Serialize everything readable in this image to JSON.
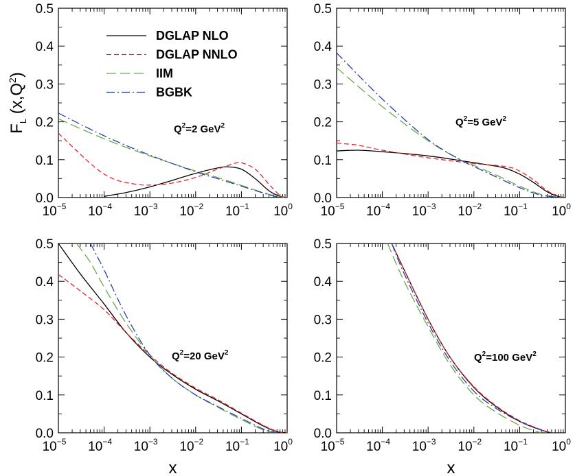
{
  "chart_data": {
    "type": "line",
    "ylabel": "F_L (x,Q^2)",
    "xlabel": "x",
    "x_scale": "log",
    "xlim": [
      1e-05,
      1
    ],
    "ylim": [
      0,
      0.5
    ],
    "x_ticks": [
      {
        "base": "10",
        "exp": "−5"
      },
      {
        "base": "10",
        "exp": "−4"
      },
      {
        "base": "10",
        "exp": "−3"
      },
      {
        "base": "10",
        "exp": "−2"
      },
      {
        "base": "10",
        "exp": "−1"
      },
      {
        "base": "10",
        "exp": "0"
      }
    ],
    "y_ticks": [
      "0.0",
      "0.1",
      "0.2",
      "0.3",
      "0.4",
      "0.5"
    ],
    "legend": {
      "position": "top-left of first panel",
      "entries": [
        {
          "name": "DGLAP NLO",
          "color": "#000000",
          "dash": "solid"
        },
        {
          "name": "DGLAP NNLO",
          "color": "#e8252a",
          "dash": "dashed"
        },
        {
          "name": "IIM",
          "color": "#6aa84f",
          "dash": "long-dashed"
        },
        {
          "name": "BGBK",
          "color": "#2b3ea8",
          "dash": "dash-dot"
        }
      ]
    },
    "panels": [
      {
        "label_q": "Q",
        "label_sup": "2",
        "label_mid": "=2 GeV",
        "label_sup2": "2",
        "series": [
          {
            "name": "DGLAP NLO",
            "x": [
              0.0001,
              0.0003,
              0.001,
              0.003,
              0.01,
              0.03,
              0.05,
              0.1,
              0.2,
              0.4,
              0.7,
              1
            ],
            "y": [
              0.003,
              0.013,
              0.028,
              0.045,
              0.064,
              0.078,
              0.081,
              0.075,
              0.05,
              0.018,
              0.003,
              0.0
            ]
          },
          {
            "name": "DGLAP NNLO",
            "x": [
              1e-05,
              2e-05,
              5e-05,
              0.0001,
              0.0002,
              0.0005,
              0.001,
              0.003,
              0.01,
              0.03,
              0.07,
              0.1,
              0.2,
              0.4,
              0.7,
              1
            ],
            "y": [
              0.17,
              0.135,
              0.09,
              0.062,
              0.045,
              0.035,
              0.033,
              0.038,
              0.053,
              0.075,
              0.09,
              0.092,
              0.075,
              0.035,
              0.006,
              0.0
            ]
          },
          {
            "name": "IIM",
            "x": [
              1e-05,
              0.0001,
              0.001,
              0.01,
              0.03,
              0.1,
              0.3,
              0.6,
              1
            ],
            "y": [
              0.208,
              0.155,
              0.11,
              0.07,
              0.053,
              0.032,
              0.013,
              0.003,
              0.0
            ]
          },
          {
            "name": "BGBK",
            "x": [
              1e-05,
              0.0001,
              0.001,
              0.01,
              0.03,
              0.1,
              0.3,
              0.6,
              1
            ],
            "y": [
              0.223,
              0.163,
              0.112,
              0.068,
              0.05,
              0.03,
              0.012,
              0.002,
              0.0
            ]
          }
        ]
      },
      {
        "label_q": "Q",
        "label_sup": "2",
        "label_mid": "=5 GeV",
        "label_sup2": "2",
        "series": [
          {
            "name": "DGLAP NLO",
            "x": [
              1e-05,
              3e-05,
              0.0001,
              0.001,
              0.01,
              0.03,
              0.05,
              0.1,
              0.2,
              0.4,
              0.7,
              1
            ],
            "y": [
              0.123,
              0.125,
              0.121,
              0.11,
              0.092,
              0.083,
              0.077,
              0.062,
              0.04,
              0.015,
              0.003,
              0.0
            ]
          },
          {
            "name": "DGLAP NNLO",
            "x": [
              1e-05,
              3e-05,
              0.0001,
              0.001,
              0.01,
              0.03,
              0.06,
              0.1,
              0.2,
              0.4,
              0.7,
              1
            ],
            "y": [
              0.144,
              0.138,
              0.125,
              0.105,
              0.09,
              0.085,
              0.08,
              0.07,
              0.047,
              0.018,
              0.004,
              0.0
            ]
          },
          {
            "name": "IIM",
            "x": [
              1e-05,
              0.0001,
              0.001,
              0.005,
              0.01,
              0.03,
              0.1,
              0.3,
              1
            ],
            "y": [
              0.343,
              0.24,
              0.15,
              0.1,
              0.085,
              0.06,
              0.03,
              0.008,
              0.0
            ]
          },
          {
            "name": "BGBK",
            "x": [
              1e-05,
              0.0001,
              0.001,
              0.005,
              0.01,
              0.03,
              0.1,
              0.3,
              1
            ],
            "y": [
              0.382,
              0.26,
              0.153,
              0.1,
              0.082,
              0.055,
              0.026,
              0.006,
              0.0
            ]
          }
        ]
      },
      {
        "label_q": "Q",
        "label_sup": "2",
        "label_mid": "=20 GeV",
        "label_sup2": "2",
        "series": [
          {
            "name": "DGLAP NLO",
            "x": [
              1e-05,
              3e-05,
              0.0001,
              0.0003,
              0.001,
              0.003,
              0.01,
              0.03,
              0.1,
              0.3,
              0.6,
              1
            ],
            "y": [
              0.5,
              0.42,
              0.34,
              0.265,
              0.2,
              0.155,
              0.115,
              0.085,
              0.05,
              0.018,
              0.003,
              0.0
            ]
          },
          {
            "name": "DGLAP NNLO",
            "x": [
              1e-05,
              3e-05,
              0.0001,
              0.0003,
              0.001,
              0.003,
              0.01,
              0.03,
              0.1,
              0.3,
              0.6,
              1
            ],
            "y": [
              0.418,
              0.375,
              0.325,
              0.265,
              0.205,
              0.158,
              0.118,
              0.088,
              0.052,
              0.02,
              0.004,
              0.0
            ]
          },
          {
            "name": "IIM",
            "x": [
              2.5e-05,
              5e-05,
              0.0001,
              0.0003,
              0.001,
              0.003,
              0.01,
              0.03,
              0.1,
              0.3,
              0.6
            ],
            "y": [
              0.5,
              0.45,
              0.385,
              0.29,
              0.205,
              0.145,
              0.1,
              0.068,
              0.035,
              0.008,
              0.0
            ]
          },
          {
            "name": "BGBK",
            "x": [
              5e-05,
              0.0001,
              0.0003,
              0.001,
              0.003,
              0.01,
              0.03,
              0.1,
              0.3,
              0.6
            ],
            "y": [
              0.5,
              0.43,
              0.31,
              0.205,
              0.145,
              0.1,
              0.07,
              0.038,
              0.01,
              0.0
            ]
          }
        ]
      },
      {
        "label_q": "Q",
        "label_sup": "2",
        "label_mid": "=100 GeV",
        "label_sup2": "2",
        "series": [
          {
            "name": "DGLAP NLO",
            "x": [
              0.00016,
              0.0003,
              0.001,
              0.003,
              0.01,
              0.03,
              0.1,
              0.3,
              0.5
            ],
            "y": [
              0.5,
              0.43,
              0.3,
              0.2,
              0.12,
              0.07,
              0.03,
              0.007,
              0.0
            ]
          },
          {
            "name": "DGLAP NNLO",
            "x": [
              0.00016,
              0.0003,
              0.001,
              0.003,
              0.01,
              0.03,
              0.1,
              0.3,
              0.5
            ],
            "y": [
              0.5,
              0.43,
              0.3,
              0.2,
              0.122,
              0.072,
              0.032,
              0.008,
              0.0
            ]
          },
          {
            "name": "IIM",
            "x": [
              0.00013,
              0.0003,
              0.001,
              0.003,
              0.01,
              0.03,
              0.1,
              0.2,
              0.3
            ],
            "y": [
              0.5,
              0.4,
              0.28,
              0.18,
              0.1,
              0.055,
              0.02,
              0.006,
              0.0
            ]
          },
          {
            "name": "BGBK",
            "x": [
              0.00016,
              0.0003,
              0.001,
              0.003,
              0.01,
              0.03,
              0.1,
              0.3,
              0.5
            ],
            "y": [
              0.5,
              0.42,
              0.29,
              0.19,
              0.11,
              0.065,
              0.03,
              0.007,
              0.0
            ]
          }
        ]
      }
    ]
  }
}
